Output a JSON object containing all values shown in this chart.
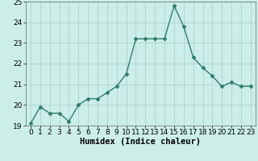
{
  "x": [
    0,
    1,
    2,
    3,
    4,
    5,
    6,
    7,
    8,
    9,
    10,
    11,
    12,
    13,
    14,
    15,
    16,
    17,
    18,
    19,
    20,
    21,
    22,
    23
  ],
  "y": [
    19.1,
    19.9,
    19.6,
    19.6,
    19.2,
    20.0,
    20.3,
    20.3,
    20.6,
    20.9,
    21.5,
    23.2,
    23.2,
    23.2,
    23.2,
    24.8,
    23.8,
    22.3,
    21.8,
    21.4,
    20.9,
    21.1,
    20.9,
    20.9
  ],
  "line_color": "#2e7d6e",
  "marker": "D",
  "marker_size": 2.5,
  "bg_color": "#cceee8",
  "grid_color": "#aad4cc",
  "xlabel": "Humidex (Indice chaleur)",
  "ylim": [
    19,
    25
  ],
  "xlim": [
    -0.5,
    23.5
  ],
  "yticks": [
    19,
    20,
    21,
    22,
    23,
    24,
    25
  ],
  "xticks": [
    0,
    1,
    2,
    3,
    4,
    5,
    6,
    7,
    8,
    9,
    10,
    11,
    12,
    13,
    14,
    15,
    16,
    17,
    18,
    19,
    20,
    21,
    22,
    23
  ],
  "font_size": 6.5,
  "xlabel_fontsize": 7.5,
  "linewidth": 1.0
}
